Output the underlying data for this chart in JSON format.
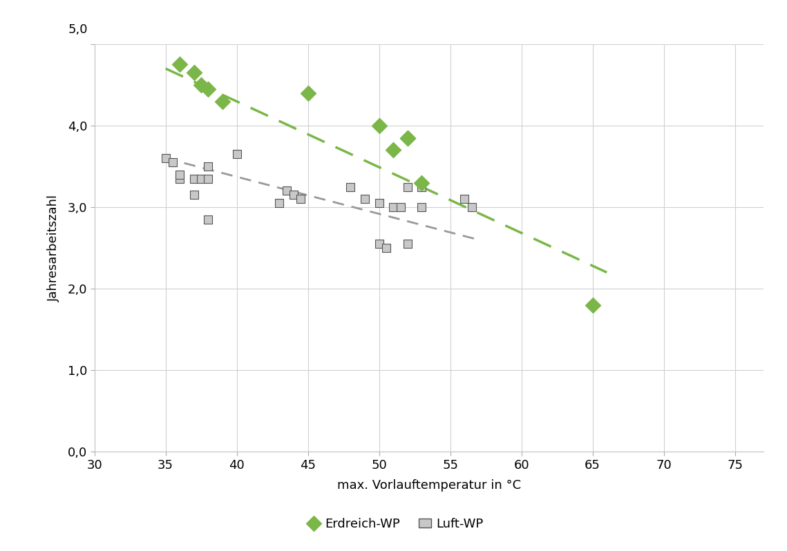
{
  "erdreich_x": [
    36,
    37,
    37.5,
    38,
    39,
    45,
    50,
    51,
    52,
    53,
    52,
    65
  ],
  "erdreich_y": [
    4.75,
    4.65,
    4.5,
    4.45,
    4.3,
    4.4,
    4.0,
    3.7,
    3.85,
    3.3,
    3.85,
    1.8
  ],
  "luft_x": [
    35,
    35.5,
    36,
    36,
    37,
    37,
    37.5,
    38,
    38,
    38,
    40,
    43,
    43.5,
    44,
    44.5,
    48,
    49,
    50,
    50,
    50.5,
    51,
    51.5,
    52,
    52,
    53,
    53,
    56,
    56.5
  ],
  "luft_y": [
    3.6,
    3.55,
    3.35,
    3.4,
    3.15,
    3.35,
    3.35,
    3.35,
    3.5,
    2.85,
    3.65,
    3.05,
    3.2,
    3.15,
    3.1,
    3.25,
    3.1,
    3.05,
    2.55,
    2.5,
    3.0,
    3.0,
    2.55,
    3.25,
    3.0,
    3.25,
    3.1,
    3.0
  ],
  "erdreich_trend_x": [
    35,
    66
  ],
  "erdreich_trend_y": [
    4.7,
    2.2
  ],
  "luft_trend_x": [
    35,
    57
  ],
  "luft_trend_y": [
    3.6,
    2.6
  ],
  "erdreich_color": "#7ab648",
  "luft_color": "#c8c8c8",
  "luft_edge_color": "#555555",
  "erdreich_trend_color": "#7ab648",
  "luft_trend_color": "#999999",
  "xlabel": "max. Vorlauftemperatur in °C",
  "ylabel": "Jahresarbeitszahl",
  "xlim": [
    30,
    77
  ],
  "ylim": [
    0.0,
    5.0
  ],
  "xticks": [
    30,
    35,
    40,
    45,
    50,
    55,
    60,
    65,
    70,
    75
  ],
  "yticks": [
    0.0,
    1.0,
    2.0,
    3.0,
    4.0,
    5.0
  ],
  "ytick_labels": [
    "0,0",
    "1,0",
    "2,0",
    "3,0",
    "4,0",
    "5,0"
  ],
  "background_color": "#ffffff",
  "grid_color": "#d0d0d0",
  "marker_size_erdreich": 130,
  "marker_size_luft": 80,
  "legend_erdreich": "Erdreich-WP",
  "legend_luft": "Luft-WP"
}
